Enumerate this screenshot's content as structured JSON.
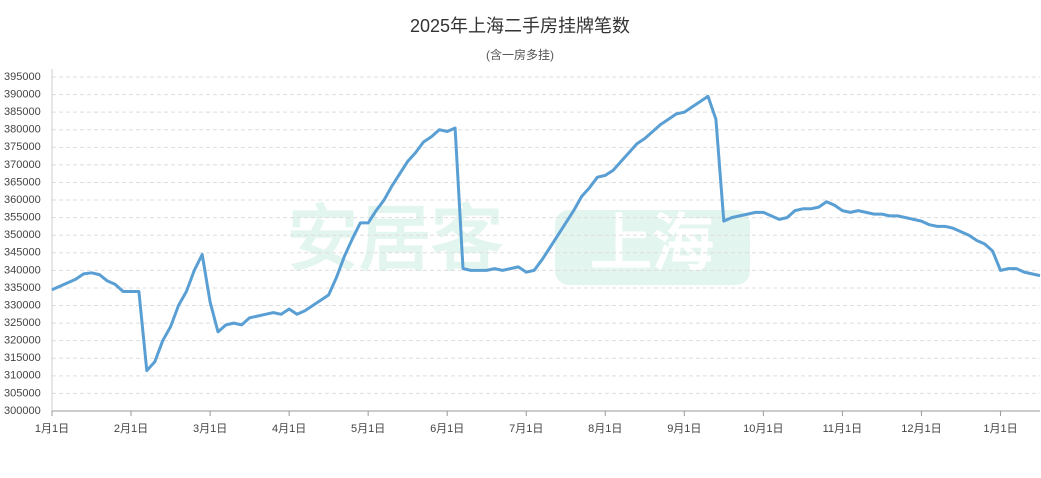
{
  "chart_data": {
    "type": "line",
    "title": "2025年上海二手房挂牌笔数",
    "subtitle": "(含一房多挂)",
    "watermark": {
      "brand": "安居客",
      "city": "上海"
    },
    "color": "#5a9fd4",
    "categories": [
      "1月1日",
      null,
      null,
      null,
      null,
      null,
      null,
      null,
      null,
      null,
      "2月1日",
      null,
      null,
      null,
      null,
      null,
      null,
      null,
      null,
      null,
      "3月1日",
      null,
      null,
      null,
      null,
      null,
      null,
      null,
      null,
      null,
      "4月1日",
      null,
      null,
      null,
      null,
      null,
      null,
      null,
      null,
      null,
      "5月1日",
      null,
      null,
      null,
      null,
      null,
      null,
      null,
      null,
      null,
      "6月1日",
      null,
      null,
      null,
      null,
      null,
      null,
      null,
      null,
      null,
      "7月1日",
      null,
      null,
      null,
      null,
      null,
      null,
      null,
      null,
      null,
      "8月1日",
      null,
      null,
      null,
      null,
      null,
      null,
      null,
      null,
      null,
      "9月1日",
      null,
      null,
      null,
      null,
      null,
      null,
      null,
      null,
      null,
      "10月1日",
      null,
      null,
      null,
      null,
      null,
      null,
      null,
      null,
      null,
      "11月1日",
      null,
      null,
      null,
      null,
      null,
      null,
      null,
      null,
      null,
      "12月1日",
      null,
      null,
      null,
      null,
      null,
      null,
      null,
      null,
      null,
      "1月1日",
      null,
      null,
      null,
      null,
      null
    ],
    "values": [
      334500,
      335500,
      336500,
      337500,
      339000,
      339300,
      338800,
      337000,
      336000,
      334000,
      334000,
      334000,
      311500,
      314000,
      320000,
      324000,
      330000,
      334000,
      340000,
      344500,
      331000,
      322500,
      324500,
      325000,
      324500,
      326500,
      327000,
      327500,
      328000,
      327500,
      329000,
      327500,
      328500,
      330000,
      331500,
      333000,
      338000,
      344000,
      349000,
      353500,
      353500,
      357000,
      360000,
      364000,
      367500,
      371000,
      373500,
      376500,
      378000,
      380000,
      379500,
      380500,
      340500,
      340000,
      340000,
      340000,
      340500,
      340000,
      340500,
      341000,
      339500,
      340000,
      343000,
      346500,
      350000,
      353500,
      357000,
      361000,
      363500,
      366500,
      367000,
      368500,
      371000,
      373500,
      376000,
      377500,
      379500,
      381500,
      383000,
      384500,
      385000,
      386500,
      388000,
      389500,
      383000,
      354000,
      355000,
      355500,
      356000,
      356500,
      356500,
      355500,
      354500,
      355000,
      357000,
      357500,
      357500,
      358000,
      359500,
      358500,
      357000,
      356500,
      357000,
      356500,
      356000,
      356000,
      355500,
      355500,
      355000,
      354500,
      354000,
      353000,
      352500,
      352500,
      352000,
      351000,
      350000,
      348500,
      347500,
      345500,
      340000,
      340500,
      340500,
      339500,
      339000,
      338500
    ],
    "ylim": [
      300000,
      395000
    ],
    "yticks": [
      300000,
      305000,
      310000,
      315000,
      320000,
      325000,
      330000,
      335000,
      340000,
      345000,
      350000,
      355000,
      360000,
      365000,
      370000,
      375000,
      380000,
      385000,
      390000,
      395000
    ],
    "grid": true
  }
}
